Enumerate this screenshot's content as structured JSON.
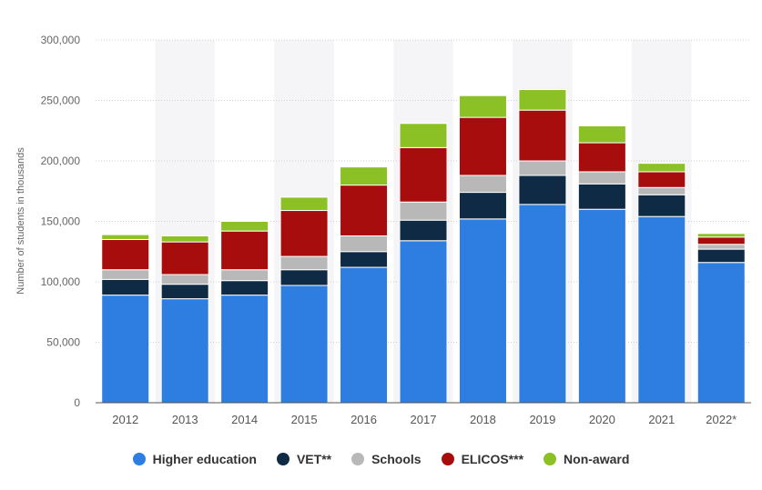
{
  "chart_data": {
    "type": "bar",
    "stacked": true,
    "title": "",
    "xlabel": "",
    "ylabel": "Number of students in thousands",
    "ylim": [
      0,
      300000
    ],
    "yticks": [
      0,
      50000,
      100000,
      150000,
      200000,
      250000,
      300000
    ],
    "ytick_labels": [
      "0",
      "50,000",
      "100,000",
      "150,000",
      "200,000",
      "250,000",
      "300,000"
    ],
    "categories": [
      "2012",
      "2013",
      "2014",
      "2015",
      "2016",
      "2017",
      "2018",
      "2019",
      "2020",
      "2021",
      "2022*"
    ],
    "series": [
      {
        "name": "Higher education",
        "color": "#2e7de0",
        "values": [
          89000,
          86000,
          89000,
          97000,
          112000,
          134000,
          152000,
          164000,
          160000,
          154000,
          116000
        ]
      },
      {
        "name": "VET**",
        "color": "#0f2a44",
        "values": [
          13000,
          12000,
          12000,
          13000,
          13000,
          17000,
          22000,
          24000,
          21000,
          18000,
          11000
        ]
      },
      {
        "name": "Schools",
        "color": "#b8b8b8",
        "values": [
          8000,
          8000,
          9000,
          11000,
          13000,
          15000,
          14000,
          12000,
          10000,
          6000,
          4000
        ]
      },
      {
        "name": "ELICOS***",
        "color": "#a80d0d",
        "values": [
          25000,
          27000,
          32000,
          38000,
          42000,
          45000,
          48000,
          42000,
          24000,
          13000,
          6000
        ]
      },
      {
        "name": "Non-award",
        "color": "#8bc124",
        "values": [
          4000,
          5000,
          8000,
          11000,
          15000,
          20000,
          18000,
          17000,
          14000,
          7000,
          3000
        ]
      }
    ],
    "grid": true,
    "legend_position": "bottom"
  }
}
